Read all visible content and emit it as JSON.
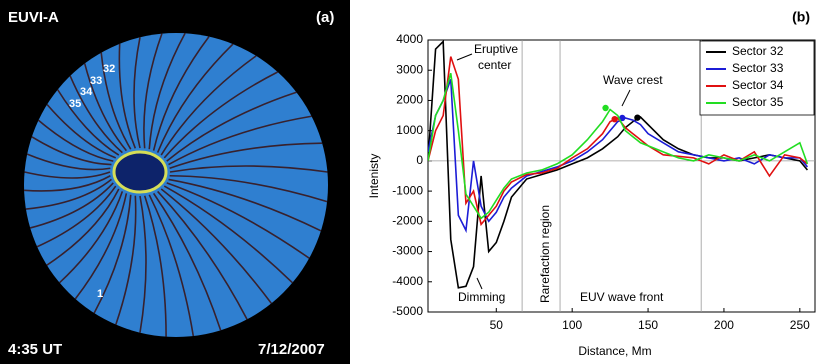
{
  "image_panel": {
    "label": "EUVI-A",
    "panel": "(a)",
    "time": "4:35 UT",
    "date": "7/12/2007",
    "sectors": [
      "32",
      "33",
      "34",
      "35",
      "1"
    ]
  },
  "chart_data": {
    "type": "line",
    "panel": "(b)",
    "xlabel": "Distance, Mm",
    "ylabel": "Intenisty",
    "xlim": [
      5,
      260
    ],
    "xticks": [
      50,
      100,
      150,
      200,
      250
    ],
    "ylim": [
      -5000,
      4000
    ],
    "yticks": [
      -5000,
      -4000,
      -3000,
      -2000,
      -1000,
      0,
      1000,
      2000,
      3000,
      4000
    ],
    "vlines": [
      67,
      92,
      185
    ],
    "annotations": [
      "Eruptive",
      "center",
      "Wave crest",
      "Dimming",
      "Rarefaction region",
      "EUV wave front"
    ],
    "x": [
      5,
      10,
      15,
      20,
      25,
      30,
      35,
      40,
      45,
      50,
      55,
      60,
      70,
      80,
      90,
      100,
      110,
      120,
      125,
      130,
      135,
      140,
      145,
      150,
      160,
      170,
      180,
      190,
      200,
      210,
      220,
      230,
      240,
      250,
      255
    ],
    "series": [
      {
        "name": "Sector 32",
        "color": "#000000",
        "crest": [
          143,
          1430
        ],
        "values": [
          0,
          3700,
          3950,
          -2600,
          -4200,
          -4150,
          -3500,
          -500,
          -3000,
          -2700,
          -2000,
          -1200,
          -600,
          -450,
          -300,
          -100,
          100,
          400,
          600,
          800,
          1100,
          1300,
          1450,
          1200,
          700,
          400,
          200,
          100,
          100,
          0,
          100,
          200,
          100,
          0,
          -300
        ]
      },
      {
        "name": "Sector 33",
        "color": "#1c1cd6",
        "crest": [
          133,
          1420
        ],
        "values": [
          300,
          1500,
          2000,
          2700,
          -1800,
          -2300,
          0,
          -1500,
          -2000,
          -1700,
          -1200,
          -900,
          -500,
          -350,
          -200,
          0,
          300,
          700,
          1000,
          1300,
          1420,
          1350,
          1200,
          900,
          600,
          300,
          200,
          100,
          0,
          100,
          -100,
          200,
          100,
          100,
          -200
        ]
      },
      {
        "name": "Sector 34",
        "color": "#e01010",
        "crest": [
          128,
          1380
        ],
        "values": [
          0,
          1000,
          1500,
          3450,
          2700,
          -1400,
          -1000,
          -2100,
          -1800,
          -1500,
          -1000,
          -700,
          -450,
          -400,
          -250,
          100,
          400,
          900,
          1300,
          1420,
          1100,
          900,
          700,
          500,
          200,
          150,
          100,
          -100,
          200,
          0,
          300,
          -500,
          200,
          100,
          -100
        ]
      },
      {
        "name": "Sector 35",
        "color": "#22dd22",
        "crest": [
          122,
          1750
        ],
        "values": [
          0,
          1500,
          2000,
          2900,
          1000,
          -1100,
          -1500,
          -1900,
          -1700,
          -1300,
          -900,
          -600,
          -400,
          -300,
          -100,
          200,
          700,
          1300,
          1700,
          1500,
          1000,
          800,
          600,
          500,
          300,
          100,
          0,
          200,
          100,
          0,
          200,
          0,
          300,
          600,
          -100
        ]
      }
    ]
  }
}
